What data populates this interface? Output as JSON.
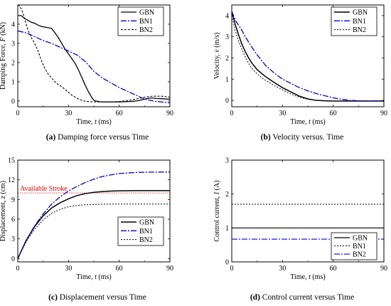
{
  "chart_data": [
    {
      "id": "a",
      "type": "line",
      "caption_letter": "(a)",
      "caption_text": " Damping force versus Time",
      "xlabel_pre": "Time, ",
      "xlabel_var": "t",
      "xlabel_unit": " (ms)",
      "ylabel_pre": "Damping Force, ",
      "ylabel_var": "F",
      "ylabel_unit": " (kN)",
      "xlim": [
        0,
        90
      ],
      "ylim": [
        -0.3,
        5.0
      ],
      "xticks": [
        0,
        30,
        60,
        90
      ],
      "yticks": [
        0,
        1,
        2,
        3,
        4
      ],
      "legend": "top-right",
      "series": [
        {
          "name": "GBN",
          "color": "#000000",
          "dash": "",
          "width": 1.3,
          "x": [
            0,
            2,
            4,
            6,
            8,
            10,
            12,
            14,
            16,
            18,
            20,
            22,
            24,
            26,
            28,
            30,
            32,
            34,
            36,
            38,
            40,
            42,
            44,
            45,
            46,
            48,
            50,
            52,
            55,
            58,
            60,
            62,
            65,
            68,
            70,
            72,
            75,
            78,
            80,
            82,
            85,
            88,
            90
          ],
          "y": [
            4.45,
            4.45,
            4.3,
            4.2,
            4.1,
            4.05,
            3.95,
            3.88,
            3.85,
            3.82,
            3.78,
            3.55,
            3.3,
            3.0,
            2.7,
            2.45,
            2.2,
            1.95,
            1.6,
            1.2,
            0.8,
            0.45,
            0.15,
            0.04,
            0.0,
            -0.03,
            -0.05,
            -0.05,
            -0.05,
            -0.05,
            -0.05,
            -0.04,
            -0.03,
            -0.02,
            0.0,
            0.03,
            0.1,
            0.15,
            0.15,
            0.13,
            0.12,
            0.1,
            0.1
          ]
        },
        {
          "name": "BN1",
          "color": "#0000ee",
          "dash": "8,2,2,2",
          "width": 1.3,
          "x": [
            0,
            5,
            10,
            15,
            20,
            25,
            30,
            35,
            40,
            45,
            50,
            55,
            60,
            65,
            70,
            75,
            80,
            85,
            90
          ],
          "y": [
            3.65,
            3.55,
            3.35,
            3.15,
            3.0,
            2.8,
            2.6,
            2.4,
            2.05,
            1.55,
            1.2,
            0.95,
            0.7,
            0.5,
            0.3,
            0.1,
            0.0,
            -0.05,
            -0.1
          ]
        },
        {
          "name": "BN2",
          "color": "#000000",
          "dash": "3,2",
          "width": 1.1,
          "x": [
            0,
            1,
            2,
            3,
            4,
            5,
            6,
            8,
            10,
            12,
            14,
            16,
            18,
            20,
            22,
            24,
            26,
            28,
            30,
            32,
            34,
            36,
            38,
            40,
            42,
            45,
            48,
            50,
            55,
            60,
            65,
            70,
            75,
            80,
            85,
            90
          ],
          "y": [
            5.0,
            4.95,
            4.8,
            4.6,
            4.3,
            4.0,
            3.7,
            3.3,
            3.0,
            2.6,
            2.1,
            1.7,
            1.4,
            1.2,
            1.0,
            0.85,
            0.75,
            0.6,
            0.45,
            0.3,
            0.2,
            0.1,
            0.03,
            -0.02,
            -0.03,
            -0.05,
            -0.05,
            -0.05,
            -0.05,
            -0.03,
            0.02,
            0.1,
            0.2,
            0.25,
            0.25,
            0.2
          ]
        }
      ]
    },
    {
      "id": "b",
      "type": "line",
      "caption_letter": "(b)",
      "caption_text": " Velocity versus. Time",
      "xlabel_pre": "Time, ",
      "xlabel_var": "t",
      "xlabel_unit": " (ms)",
      "ylabel_pre": "Velocity, ",
      "ylabel_var": "v",
      "ylabel_unit": " (m/s)",
      "xlim": [
        0,
        90
      ],
      "ylim": [
        -0.3,
        4.5
      ],
      "xticks": [
        0,
        30,
        60,
        90
      ],
      "yticks": [
        0,
        1,
        2,
        3,
        4
      ],
      "legend": "top-right",
      "series": [
        {
          "name": "GBN",
          "color": "#000000",
          "dash": "",
          "width": 1.5,
          "x": [
            0,
            2,
            4,
            6,
            8,
            10,
            12,
            15,
            18,
            20,
            25,
            30,
            35,
            40,
            45,
            50,
            55,
            60,
            70,
            80,
            90
          ],
          "y": [
            4.2,
            3.6,
            3.1,
            2.65,
            2.3,
            2.0,
            1.75,
            1.45,
            1.25,
            1.12,
            0.85,
            0.6,
            0.4,
            0.2,
            0.07,
            0.0,
            -0.02,
            -0.03,
            -0.03,
            -0.03,
            -0.03
          ]
        },
        {
          "name": "BN1",
          "color": "#0000ee",
          "dash": "8,2,2,2",
          "width": 1.3,
          "x": [
            0,
            2,
            4,
            6,
            8,
            10,
            12,
            15,
            18,
            20,
            25,
            30,
            35,
            40,
            45,
            50,
            55,
            60,
            65,
            70,
            75,
            80,
            90
          ],
          "y": [
            4.2,
            3.8,
            3.55,
            3.3,
            3.0,
            2.75,
            2.5,
            2.15,
            1.85,
            1.65,
            1.3,
            1.0,
            0.8,
            0.6,
            0.45,
            0.32,
            0.22,
            0.12,
            0.05,
            0.0,
            -0.02,
            -0.03,
            -0.03
          ]
        },
        {
          "name": "BN2",
          "color": "#000000",
          "dash": "2,2",
          "width": 1.0,
          "x": [
            0,
            2,
            4,
            6,
            8,
            10,
            12,
            15,
            18,
            20,
            25,
            30,
            35,
            40,
            45,
            50,
            55,
            60,
            70,
            80,
            90
          ],
          "y": [
            4.0,
            3.3,
            2.8,
            2.4,
            2.05,
            1.75,
            1.5,
            1.25,
            1.05,
            0.95,
            0.7,
            0.5,
            0.3,
            0.15,
            0.05,
            0.0,
            -0.02,
            -0.03,
            -0.03,
            -0.03,
            -0.03
          ]
        }
      ]
    },
    {
      "id": "c",
      "type": "line",
      "caption_letter": "(c)",
      "caption_text": " Displacement versus Time",
      "xlabel_pre": "Time, ",
      "xlabel_var": "t",
      "xlabel_unit": " (ms)",
      "ylabel_pre": "Displacement, ",
      "ylabel_var": "z",
      "ylabel_unit": " (cm)",
      "xlim": [
        0,
        90
      ],
      "ylim": [
        -0.5,
        15
      ],
      "xticks": [
        0,
        30,
        60,
        90
      ],
      "yticks": [
        0,
        3,
        6,
        9,
        12,
        15
      ],
      "legend": "lower-right",
      "annotation": {
        "text": "Available Stroke",
        "y": 10.0
      },
      "series": [
        {
          "name": "GBN",
          "color": "#000000",
          "dash": "",
          "width": 1.5,
          "x": [
            0,
            5,
            10,
            15,
            20,
            25,
            30,
            35,
            40,
            45,
            50,
            55,
            60,
            65,
            70,
            75,
            80,
            90
          ],
          "y": [
            0,
            2.8,
            4.9,
            6.5,
            7.7,
            8.5,
            9.1,
            9.6,
            9.9,
            10.1,
            10.2,
            10.28,
            10.32,
            10.34,
            10.35,
            10.35,
            10.35,
            10.35
          ]
        },
        {
          "name": "BN1",
          "color": "#0000ee",
          "dash": "8,2,2,2",
          "width": 1.3,
          "x": [
            0,
            5,
            10,
            15,
            20,
            25,
            30,
            35,
            40,
            45,
            50,
            55,
            60,
            65,
            70,
            75,
            80,
            85,
            90
          ],
          "y": [
            0,
            2.8,
            5.0,
            6.8,
            8.3,
            9.4,
            10.3,
            11.0,
            11.6,
            12.1,
            12.5,
            12.75,
            12.95,
            13.05,
            13.12,
            13.15,
            13.17,
            13.18,
            13.2
          ]
        },
        {
          "name": "BN2",
          "color": "#000000",
          "dash": "2,2",
          "width": 1.0,
          "x": [
            0,
            5,
            10,
            15,
            20,
            25,
            30,
            35,
            40,
            45,
            50,
            55,
            60,
            70,
            80,
            90
          ],
          "y": [
            0,
            2.6,
            4.5,
            5.9,
            6.9,
            7.5,
            7.9,
            8.1,
            8.2,
            8.25,
            8.28,
            8.3,
            8.3,
            8.3,
            8.3,
            8.3
          ]
        }
      ]
    },
    {
      "id": "d",
      "type": "line",
      "caption_letter": "(d)",
      "caption_text": " Control current versus Time",
      "xlabel_pre": "Time, ",
      "xlabel_var": "t",
      "xlabel_unit": " (ms)",
      "ylabel_pre": "Control current, ",
      "ylabel_var": "I",
      "ylabel_unit": " (A)",
      "xlim": [
        0,
        90
      ],
      "ylim": [
        0,
        3
      ],
      "xticks": [
        0,
        30,
        60,
        90
      ],
      "yticks": [
        0,
        1,
        2,
        3
      ],
      "legend": "lower-right",
      "series": [
        {
          "name": "GBN",
          "color": "#000000",
          "dash": "",
          "width": 1.2,
          "x": [
            0,
            90
          ],
          "y": [
            1.0,
            1.0
          ]
        },
        {
          "name": "BN1",
          "color": "#000000",
          "dash": "2,2",
          "width": 1.0,
          "x": [
            0,
            90
          ],
          "y": [
            1.7,
            1.7
          ]
        },
        {
          "name": "BN2",
          "color": "#0000ee",
          "dash": "8,2,2,2",
          "width": 1.2,
          "x": [
            0,
            90
          ],
          "y": [
            0.67,
            0.67
          ]
        }
      ]
    }
  ]
}
